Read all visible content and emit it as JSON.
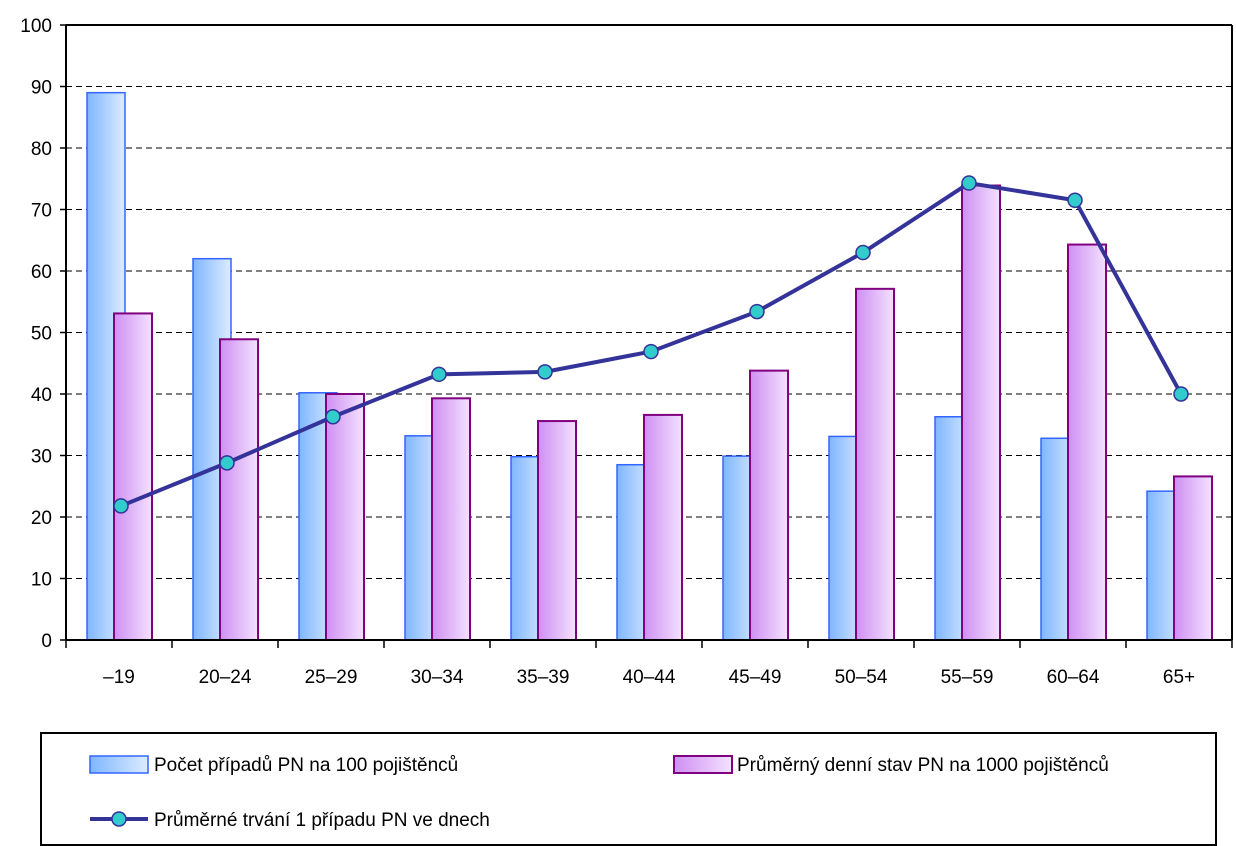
{
  "chart_data": {
    "type": "bar",
    "categories": [
      "–19",
      "20–24",
      "25–29",
      "30–34",
      "35–39",
      "40–44",
      "45–49",
      "50–54",
      "55–59",
      "60–64",
      "65+"
    ],
    "series": [
      {
        "name": "Počet případů PN na 100 pojištěnců",
        "type": "bar",
        "color": "#99ccff",
        "values": [
          89.0,
          62.0,
          40.2,
          33.2,
          29.8,
          28.5,
          29.9,
          33.1,
          36.3,
          32.8,
          24.2
        ]
      },
      {
        "name": "Průměrný denní stav PN na 1000 pojištěnců",
        "type": "bar",
        "color": "#e0b3ff",
        "values": [
          53.1,
          48.9,
          40.0,
          39.3,
          35.6,
          36.6,
          43.8,
          57.1,
          73.9,
          64.3,
          26.6
        ]
      },
      {
        "name": "Průměrné trvání 1 případu PN ve dnech",
        "type": "line",
        "color": "#333399",
        "marker_color": "#33cccc",
        "values": [
          21.8,
          28.8,
          36.3,
          43.2,
          43.6,
          46.9,
          53.4,
          63.0,
          74.3,
          71.5,
          40.0
        ]
      }
    ],
    "y_ticks": [
      "0",
      "10",
      "20",
      "30",
      "40",
      "50",
      "60",
      "70",
      "80",
      "90",
      "100"
    ],
    "ylim": [
      0,
      100
    ],
    "title": "",
    "xlabel": "",
    "ylabel": "",
    "grid": "horizontal dashed",
    "legend_position": "bottom"
  }
}
